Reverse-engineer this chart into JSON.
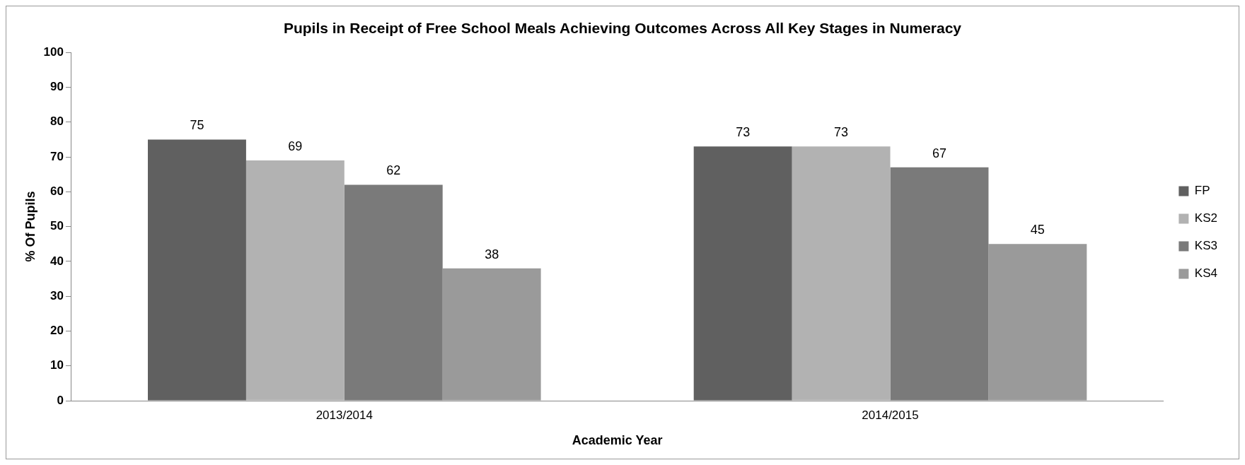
{
  "chart_data": {
    "type": "bar",
    "title": "Pupils in Receipt of Free School Meals Achieving Outcomes Across All Key Stages in Numeracy",
    "xlabel": "Academic Year",
    "ylabel": "% Of Pupils",
    "categories": [
      "2013/2014",
      "2014/2015"
    ],
    "series": [
      {
        "name": "FP",
        "color": "#606060",
        "values": [
          75,
          73
        ]
      },
      {
        "name": "KS2",
        "color": "#b2b2b2",
        "values": [
          69,
          73
        ]
      },
      {
        "name": "KS3",
        "color": "#7a7a7a",
        "values": [
          62,
          67
        ]
      },
      {
        "name": "KS4",
        "color": "#9a9a9a",
        "values": [
          38,
          45
        ]
      }
    ],
    "ylim": [
      0,
      100
    ],
    "yticks": [
      0,
      10,
      20,
      30,
      40,
      50,
      60,
      70,
      80,
      90,
      100
    ],
    "grid": false,
    "legend": "right",
    "data_labels": true
  }
}
